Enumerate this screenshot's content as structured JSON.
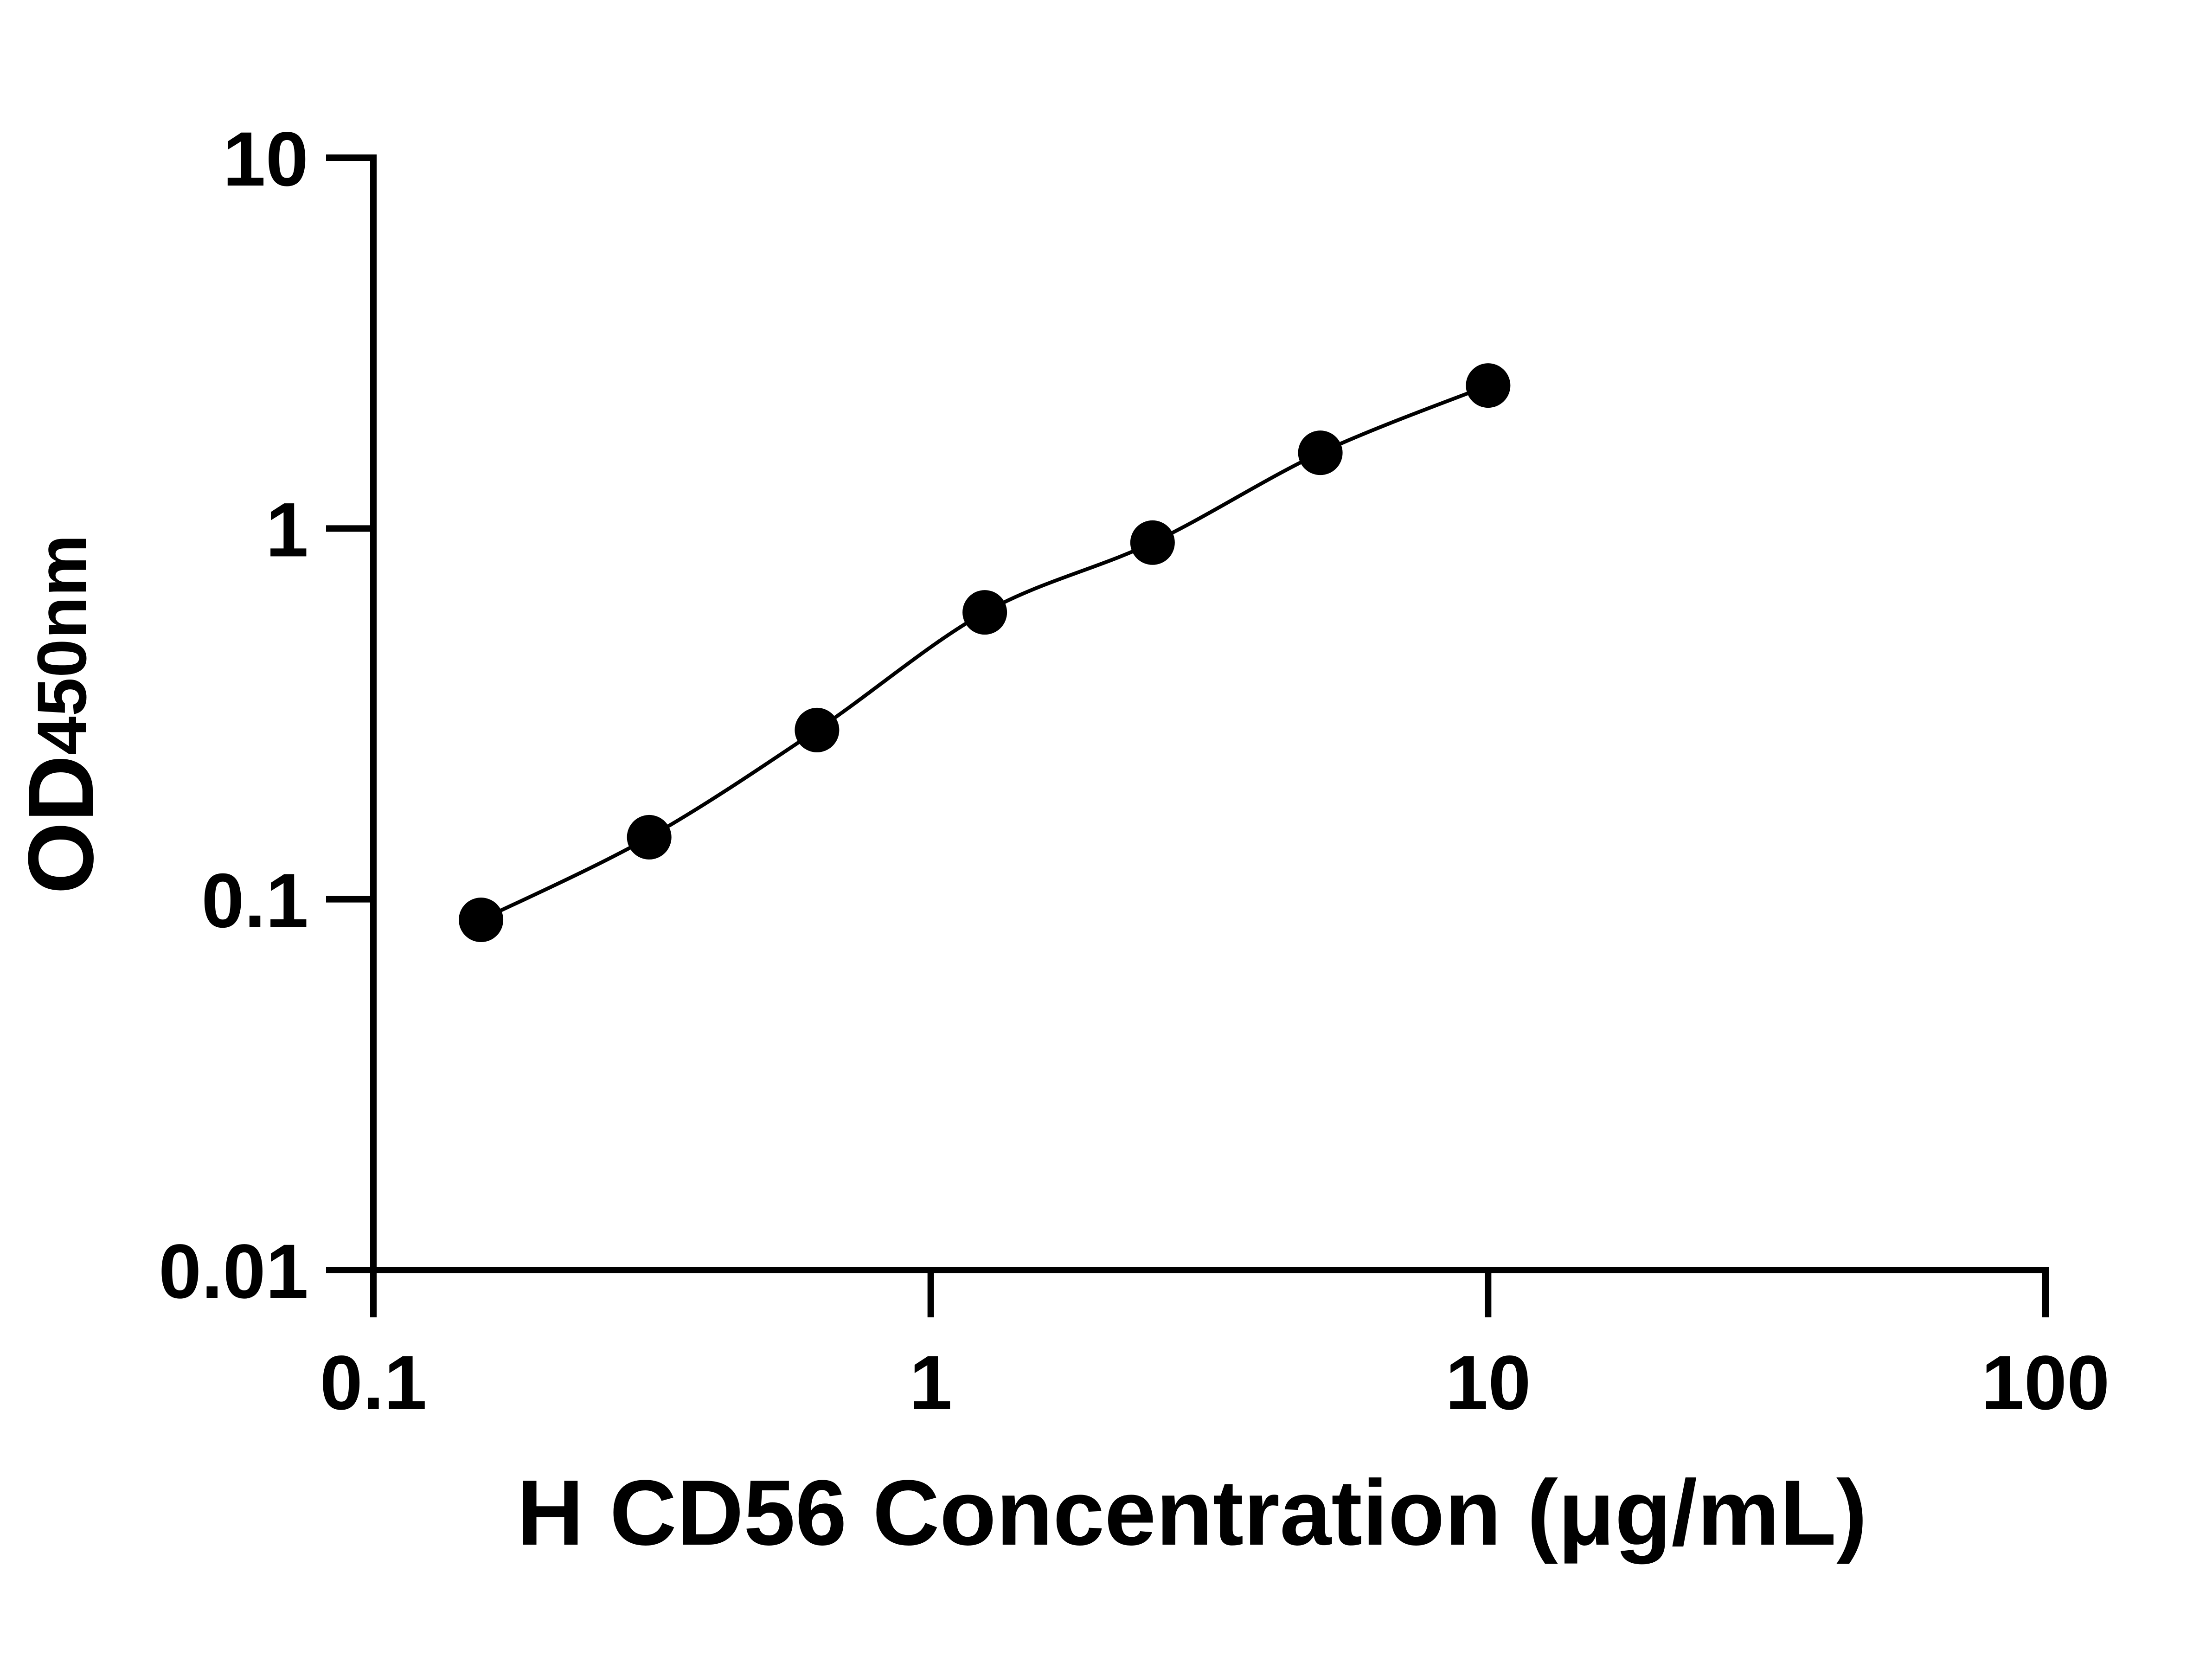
{
  "chart_data": {
    "type": "line",
    "xlabel": "H CD56 Concentration (μg/mL)",
    "ylabel": {
      "main": "OD",
      "sub": "450nm"
    },
    "x_scale": "log",
    "y_scale": "log",
    "xlim": [
      0.1,
      100
    ],
    "ylim": [
      0.01,
      10
    ],
    "x_ticks": [
      0.1,
      1,
      10,
      100
    ],
    "x_tick_labels": [
      "0.1",
      "1",
      "10",
      "100"
    ],
    "y_ticks": [
      0.01,
      0.1,
      1,
      10
    ],
    "y_tick_labels": [
      "0.01",
      "0.1",
      "1",
      "10"
    ],
    "grid": false,
    "series": [
      {
        "x": [
          0.156,
          0.3125,
          0.625,
          1.25,
          2.5,
          5,
          10
        ],
        "y": [
          0.088,
          0.147,
          0.286,
          0.594,
          0.916,
          1.6,
          2.43
        ],
        "marker": "circle",
        "color": "#000000"
      }
    ]
  }
}
